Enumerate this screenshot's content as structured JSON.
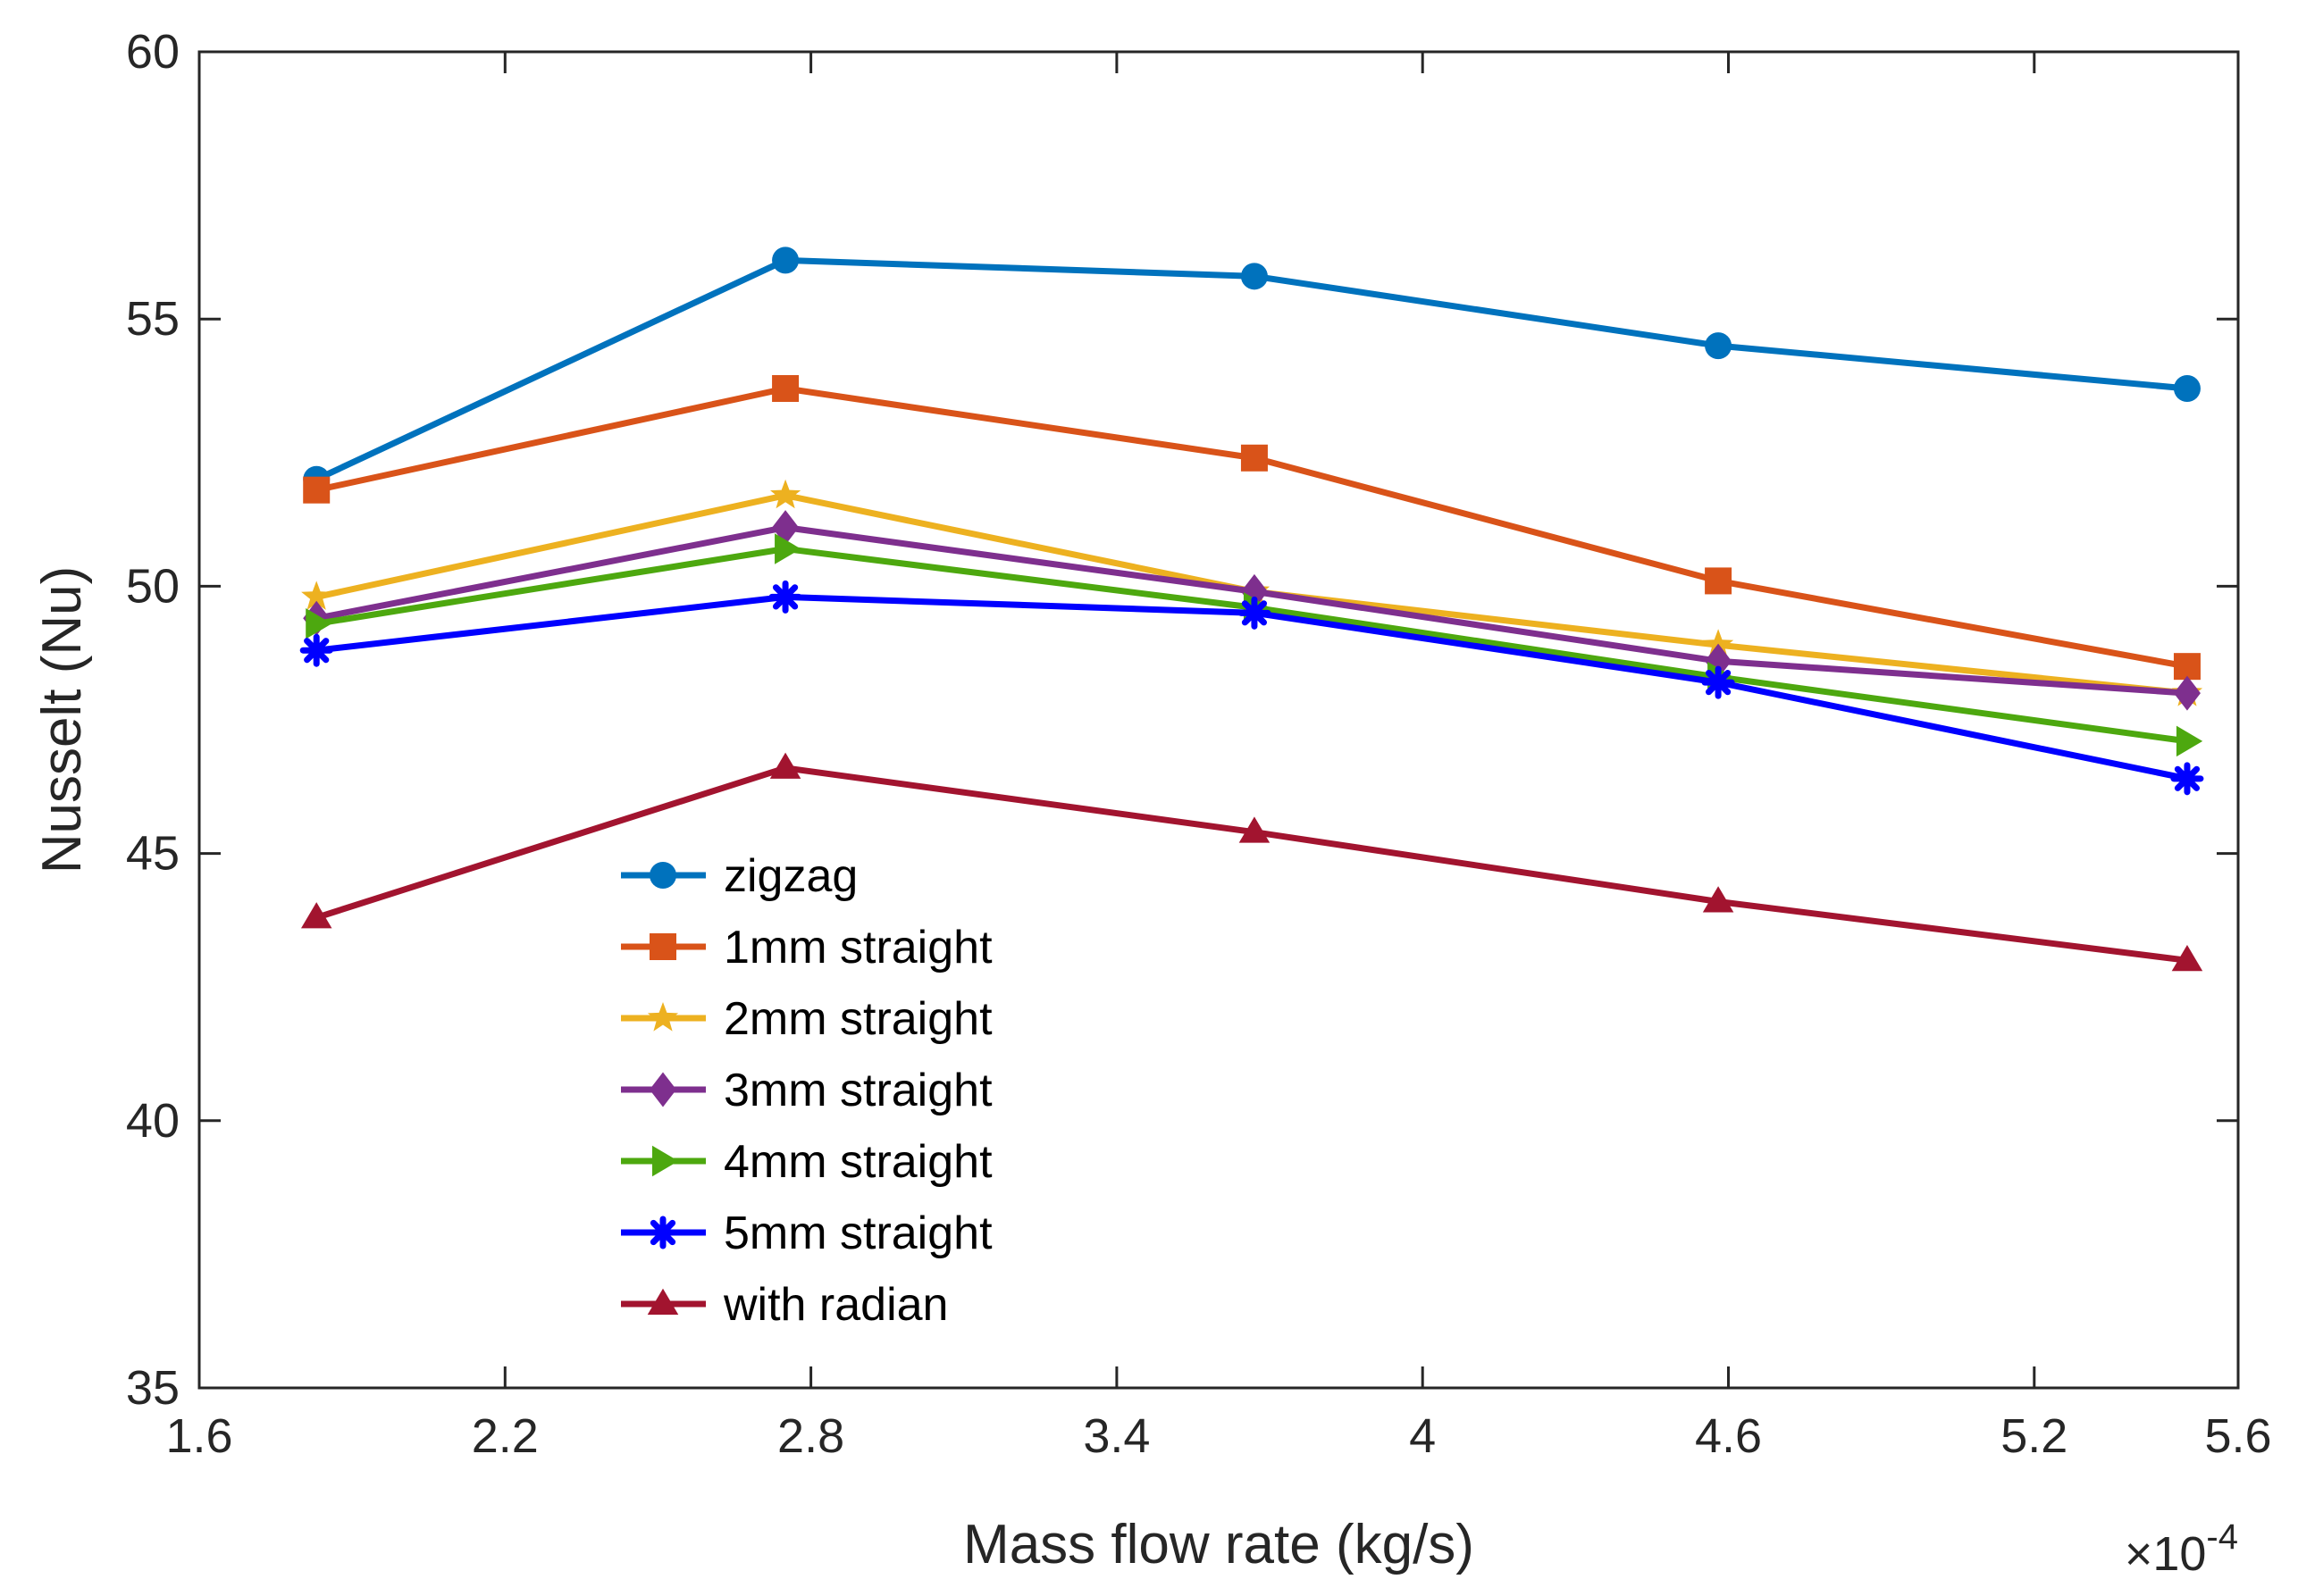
{
  "chart_data": {
    "type": "line",
    "title": "",
    "xlabel": "Mass flow rate (kg/s)",
    "ylabel": "Nusselt (Nu)",
    "x_multiplier_label": "×10",
    "x_multiplier_exponent": "-4",
    "xlim": [
      1.6,
      5.6
    ],
    "ylim": [
      35,
      60
    ],
    "x_ticks": [
      1.6,
      2.2,
      2.8,
      3.4,
      4,
      4.6,
      5.2,
      5.6
    ],
    "x_tick_labels": [
      "1.6",
      "2.2",
      "2.8",
      "3.4",
      "4",
      "4.6",
      "5.2",
      "5.6"
    ],
    "y_ticks": [
      35,
      40,
      45,
      50,
      55,
      60
    ],
    "y_tick_labels": [
      "35",
      "40",
      "45",
      "50",
      "55",
      "60"
    ],
    "grid": false,
    "legend_position": "lower-left",
    "x": [
      1.83,
      2.75,
      3.67,
      4.58,
      5.5
    ],
    "series": [
      {
        "name": "zigzag",
        "color": "#0072BD",
        "marker": "circle",
        "values": [
          52.0,
          56.1,
          55.8,
          54.5,
          53.7
        ]
      },
      {
        "name": "1mm straight",
        "color": "#D95319",
        "marker": "square",
        "values": [
          51.8,
          53.7,
          52.4,
          50.1,
          48.5
        ]
      },
      {
        "name": "2mm straight",
        "color": "#EDB120",
        "marker": "star",
        "values": [
          49.8,
          51.7,
          49.9,
          48.9,
          48.0
        ]
      },
      {
        "name": "3mm straight",
        "color": "#7E2F8E",
        "marker": "diamond",
        "values": [
          49.4,
          51.1,
          49.9,
          48.6,
          48.0
        ]
      },
      {
        "name": "4mm straight",
        "color": "#4DA80F",
        "marker": "triangle-right",
        "values": [
          49.3,
          50.7,
          49.6,
          48.3,
          47.1
        ]
      },
      {
        "name": "5mm straight",
        "color": "#0000FF",
        "marker": "asterisk",
        "values": [
          48.8,
          49.8,
          49.5,
          48.2,
          46.4
        ]
      },
      {
        "name": "with radian",
        "color": "#A2142F",
        "marker": "triangle-up",
        "values": [
          43.8,
          46.6,
          45.4,
          44.1,
          43.0
        ]
      }
    ]
  }
}
